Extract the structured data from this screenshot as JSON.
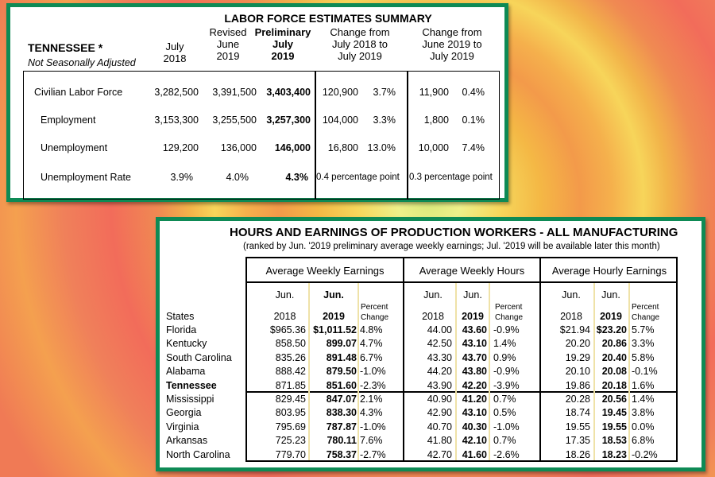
{
  "labor": {
    "title": "LABOR FORCE ESTIMATES SUMMARY",
    "state": "TENNESSEE *",
    "note": "Not Seasonally Adjusted",
    "headers": {
      "col1": [
        "July",
        "2018"
      ],
      "col2": [
        "Revised",
        "June",
        "2019"
      ],
      "col3": [
        "Preliminary",
        "July",
        "2019"
      ],
      "col4": [
        "Change from",
        "July 2018 to",
        "July 2019"
      ],
      "col5": [
        "Change from",
        "June 2019 to",
        "July 2019"
      ]
    },
    "rows": [
      {
        "label": "Civilian Labor Force",
        "v1": "3,282,500",
        "v2": "3,391,500",
        "v3": "3,403,400",
        "c1a": "120,900",
        "c1b": "3.7%",
        "c2a": "11,900",
        "c2b": "0.4%"
      },
      {
        "label": "Employment",
        "v1": "3,153,300",
        "v2": "3,255,500",
        "v3": "3,257,300",
        "c1a": "104,000",
        "c1b": "3.3%",
        "c2a": "1,800",
        "c2b": "0.1%"
      },
      {
        "label": "Unemployment",
        "v1": "129,200",
        "v2": "136,000",
        "v3": "146,000",
        "c1a": "16,800",
        "c1b": "13.0%",
        "c2a": "10,000",
        "c2b": "7.4%"
      },
      {
        "label": "Unemployment Rate",
        "v1": "3.9%",
        "v2": "4.0%",
        "v3": "4.3%",
        "c1a": "0.4 percentage point",
        "c1b": "",
        "c2a": "0.3 percentage point",
        "c2b": ""
      }
    ]
  },
  "hours": {
    "title": "HOURS AND EARNINGS OF PRODUCTION WORKERS - ALL MANUFACTURING",
    "subtitle": "(ranked by Jun. '2019 preliminary average weekly earnings; Jul. '2019 will be available later this month)",
    "groups": [
      "Average Weekly Earnings",
      "Average Weekly Hours",
      "Average Hourly Earnings"
    ],
    "sub_headers": {
      "jun": "Jun.",
      "y2018": "2018",
      "y2019": "2019",
      "pct1": "Percent",
      "pct2": "Change"
    },
    "states_label": "States",
    "rows": [
      {
        "state": "Florida",
        "we18": "$965.36",
        "we19": "$1,011.52",
        "wep": "4.8%",
        "wh18": "44.00",
        "wh19": "43.60",
        "whp": "-0.9%",
        "he18": "$21.94",
        "he19": "$23.20",
        "hep": "5.7%"
      },
      {
        "state": "Kentucky",
        "we18": "858.50",
        "we19": "899.07",
        "wep": "4.7%",
        "wh18": "42.50",
        "wh19": "43.10",
        "whp": "1.4%",
        "he18": "20.20",
        "he19": "20.86",
        "hep": "3.3%"
      },
      {
        "state": "South Carolina",
        "we18": "835.26",
        "we19": "891.48",
        "wep": "6.7%",
        "wh18": "43.30",
        "wh19": "43.70",
        "whp": "0.9%",
        "he18": "19.29",
        "he19": "20.40",
        "hep": "5.8%"
      },
      {
        "state": "Alabama",
        "we18": "888.42",
        "we19": "879.50",
        "wep": "-1.0%",
        "wh18": "44.20",
        "wh19": "43.80",
        "whp": "-0.9%",
        "he18": "20.10",
        "he19": "20.08",
        "hep": "-0.1%"
      },
      {
        "state": "Tennessee",
        "we18": "871.85",
        "we19": "851.60",
        "wep": "-2.3%",
        "wh18": "43.90",
        "wh19": "42.20",
        "whp": "-3.9%",
        "he18": "19.86",
        "he19": "20.18",
        "hep": "1.6%",
        "bold": true
      },
      {
        "state": "Mississippi",
        "we18": "829.45",
        "we19": "847.07",
        "wep": "2.1%",
        "wh18": "40.90",
        "wh19": "41.20",
        "whp": "0.7%",
        "he18": "20.28",
        "he19": "20.56",
        "hep": "1.4%"
      },
      {
        "state": "Georgia",
        "we18": "803.95",
        "we19": "838.30",
        "wep": "4.3%",
        "wh18": "42.90",
        "wh19": "43.10",
        "whp": "0.5%",
        "he18": "18.74",
        "he19": "19.45",
        "hep": "3.8%"
      },
      {
        "state": "Virginia",
        "we18": "795.69",
        "we19": "787.87",
        "wep": "-1.0%",
        "wh18": "40.70",
        "wh19": "40.30",
        "whp": "-1.0%",
        "he18": "19.55",
        "he19": "19.55",
        "hep": "0.0%"
      },
      {
        "state": "Arkansas",
        "we18": "725.23",
        "we19": "780.11",
        "wep": "7.6%",
        "wh18": "41.80",
        "wh19": "42.10",
        "whp": "0.7%",
        "he18": "17.35",
        "he19": "18.53",
        "hep": "6.8%"
      },
      {
        "state": "North Carolina",
        "we18": "779.70",
        "we19": "758.37",
        "wep": "-2.7%",
        "wh18": "42.70",
        "wh19": "41.60",
        "whp": "-2.6%",
        "he18": "18.26",
        "he19": "18.23",
        "hep": "-0.2%"
      }
    ]
  }
}
